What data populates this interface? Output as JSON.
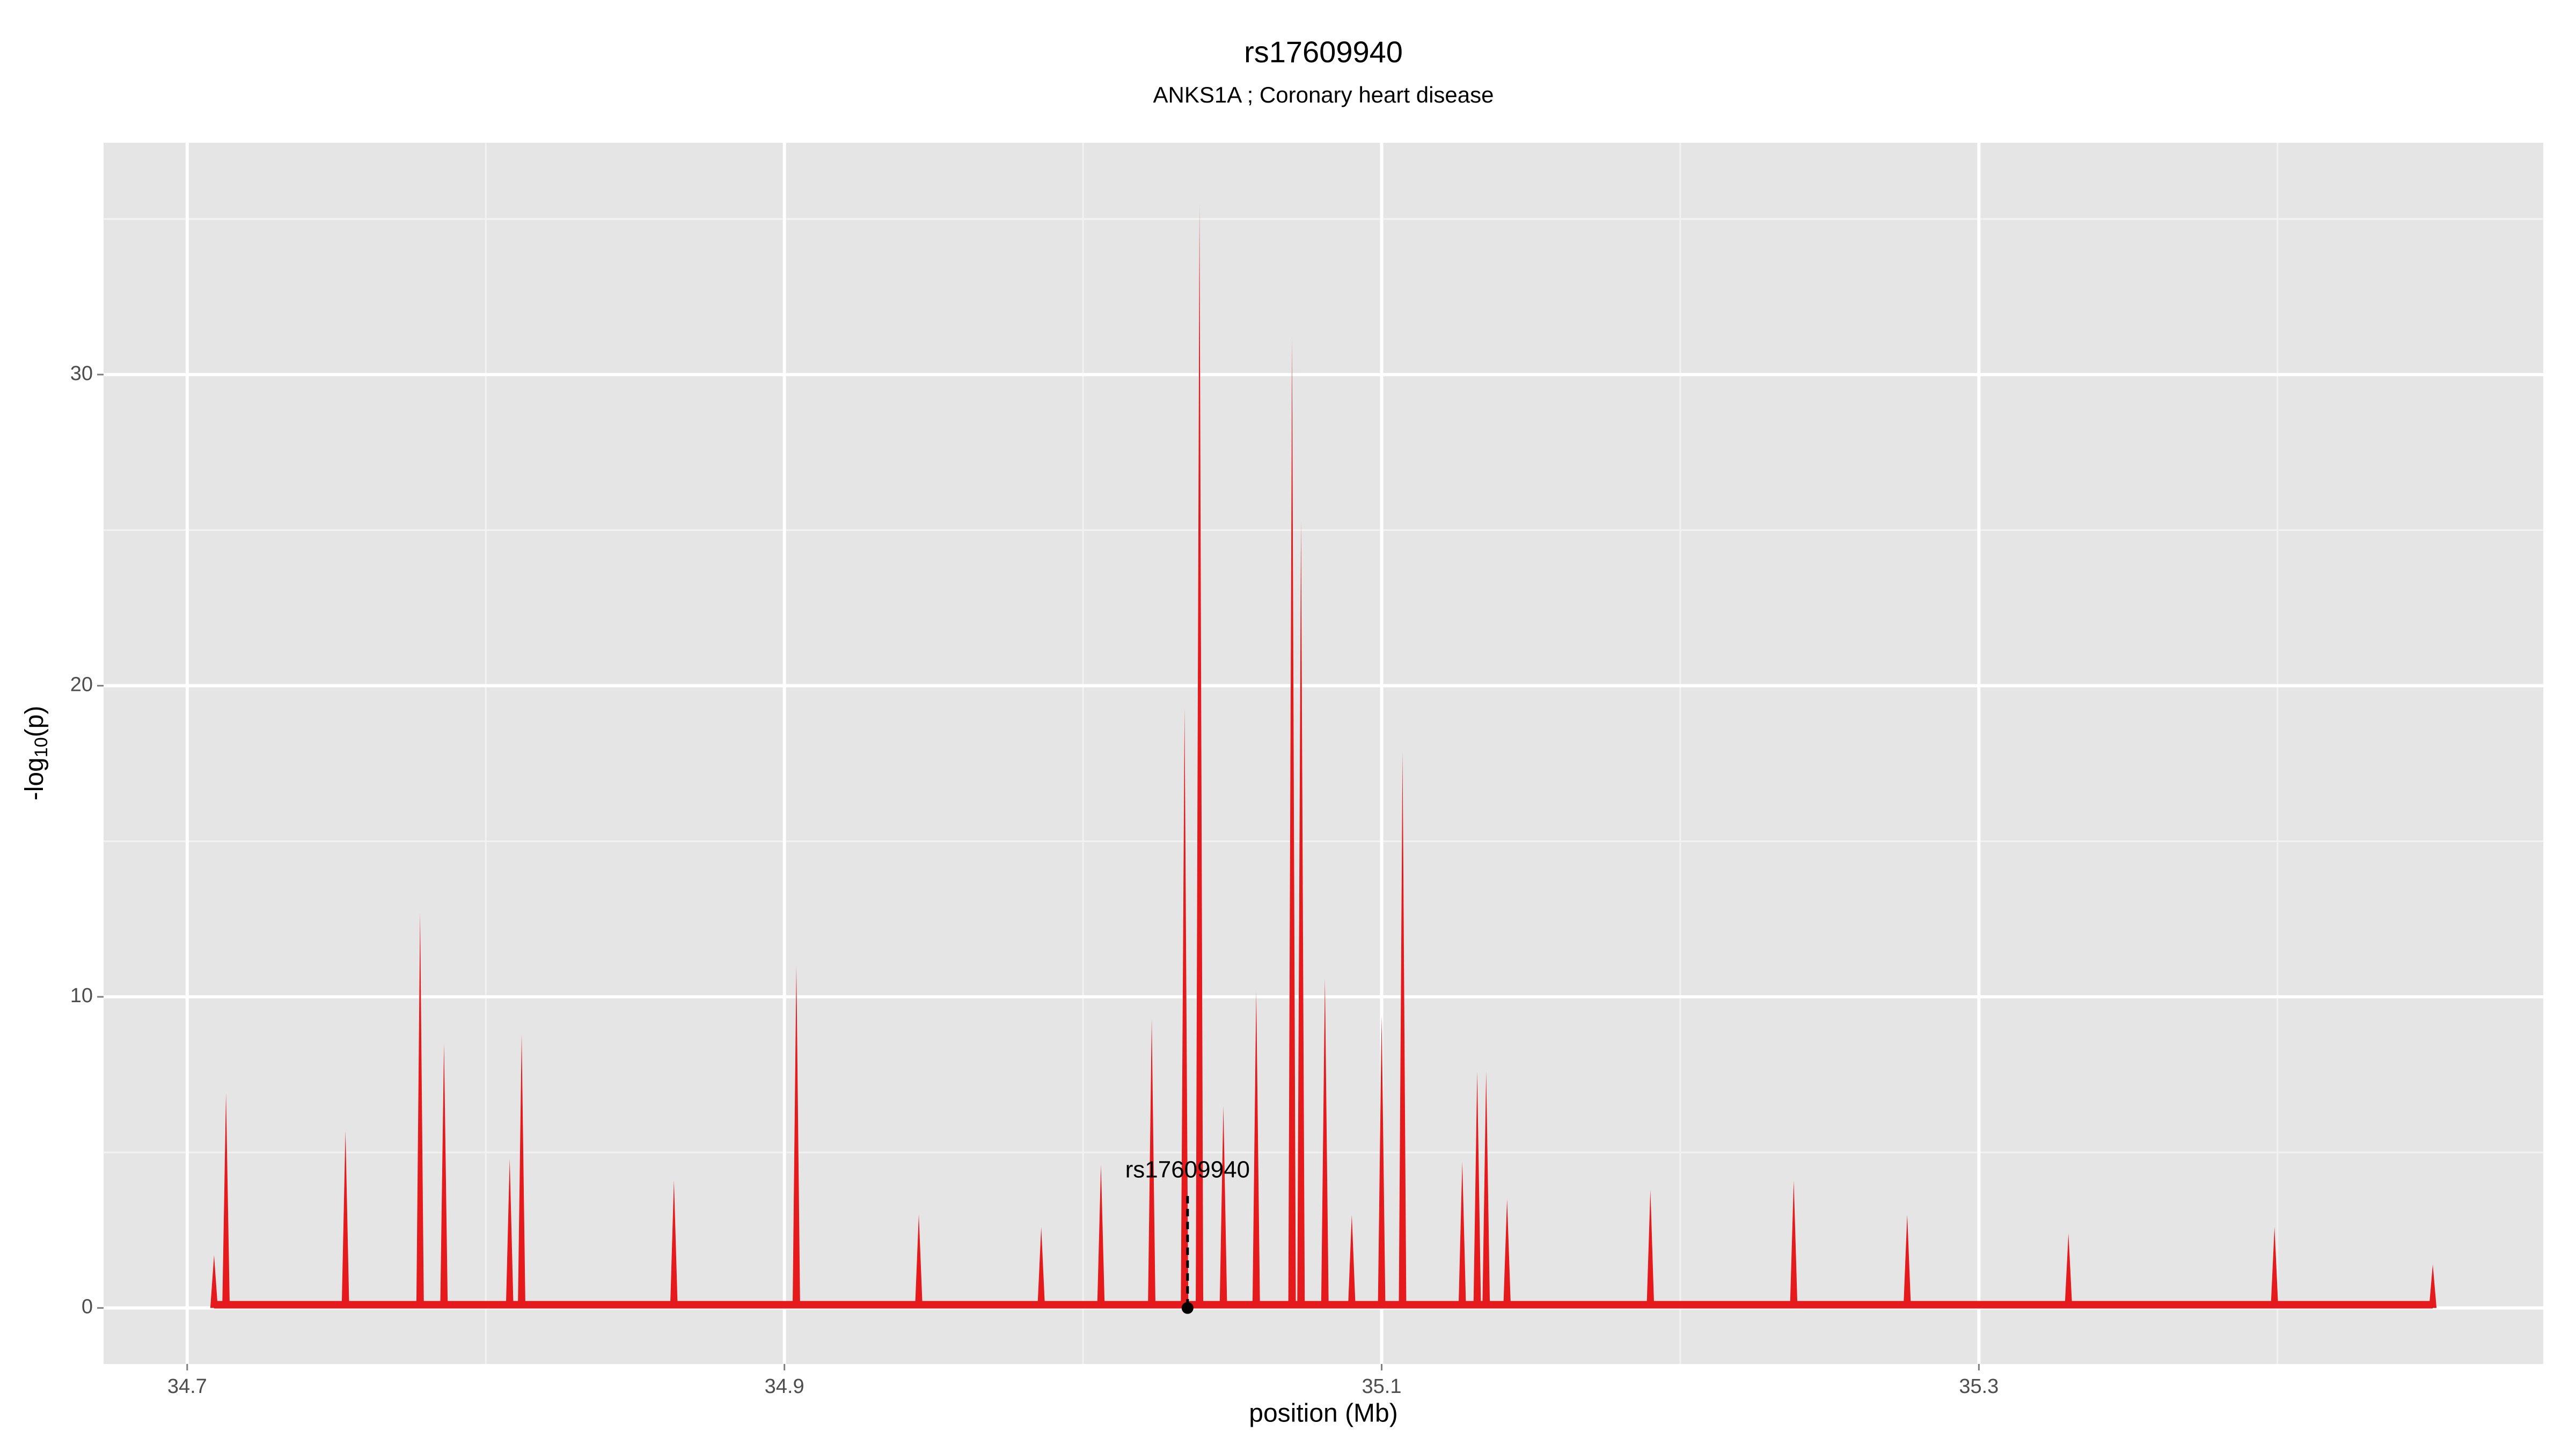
{
  "chart_data": {
    "type": "spike",
    "title": "rs17609940",
    "subtitle": "ANKS1A ; Coronary heart disease",
    "xlabel": "position (Mb)",
    "ylabel": [
      "-log",
      "10",
      "(p)"
    ],
    "xlim": [
      34.672,
      35.489
    ],
    "ylim": [
      -1.8,
      37.45
    ],
    "xticks": [
      34.7,
      34.9,
      35.1,
      35.3
    ],
    "yticks": [
      0,
      10,
      20,
      30
    ],
    "x_minor_ticks": [
      34.8,
      35.0,
      35.2,
      35.4
    ],
    "y_minor_ticks": [
      5,
      15,
      25,
      35
    ],
    "grid": true,
    "color": "#e41a1c",
    "x": [
      34.709,
      34.713,
      34.753,
      34.778,
      34.786,
      34.808,
      34.812,
      34.863,
      34.904,
      34.945,
      34.986,
      35.006,
      35.023,
      35.034,
      35.039,
      35.047,
      35.058,
      35.07,
      35.073,
      35.081,
      35.09,
      35.1,
      35.107,
      35.127,
      35.132,
      35.135,
      35.142,
      35.19,
      35.238,
      35.276,
      35.33,
      35.399,
      35.452
    ],
    "values": [
      1.7,
      6.9,
      5.7,
      12.7,
      8.5,
      4.8,
      8.8,
      4.1,
      11,
      3,
      2.6,
      4.6,
      9.3,
      19.3,
      35.5,
      6.5,
      10.2,
      31.2,
      25.3,
      10.6,
      3,
      9.4,
      17.9,
      4.7,
      7.6,
      7.6,
      3.5,
      3.8,
      4.1,
      3,
      2.4,
      2.6,
      1.4
    ],
    "annotation": {
      "text": "rs17609940",
      "x": 35.035,
      "y": 4.4,
      "line_top": 3.6,
      "point_y": 0
    }
  }
}
